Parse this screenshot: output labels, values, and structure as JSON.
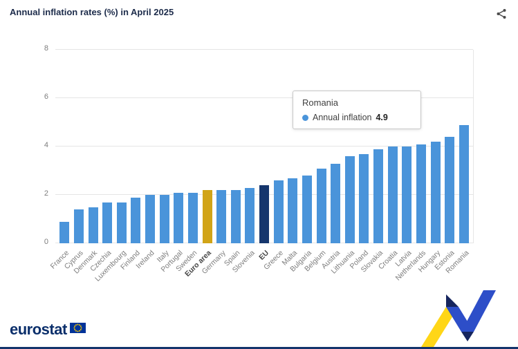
{
  "header": {
    "title": "Annual inflation rates (%) in April 2025"
  },
  "tooltip": {
    "title": "Romania",
    "series_label": "Annual inflation",
    "value": "4.9",
    "dot_color": "#4a94da"
  },
  "footer": {
    "logo_text": "eurostat"
  },
  "icons": {
    "share": "share-icon",
    "eu_flag": "eu-flag-icon",
    "ribbon": "eurostat-ribbon-decoration"
  },
  "colors": {
    "bar_default": "#4a94da",
    "bar_euro_area": "#d1a417",
    "bar_eu": "#16366d",
    "gridline": "#e5e5e5",
    "bottom_border": "#13336b"
  },
  "chart_data": {
    "type": "bar",
    "title": "Annual inflation rates (%) in April 2025",
    "xlabel": "",
    "ylabel": "",
    "ylim": [
      0,
      8
    ],
    "yticks": [
      0,
      2,
      4,
      6,
      8
    ],
    "grid": true,
    "legend_position": "tooltip-only",
    "categories": [
      "France",
      "Cyprus",
      "Denmark",
      "Czechia",
      "Luxembourg",
      "Finland",
      "Ireland",
      "Italy",
      "Portugal",
      "Sweden",
      "Euro area",
      "Germany",
      "Spain",
      "Slovenia",
      "EU",
      "Greece",
      "Malta",
      "Bulgaria",
      "Belgium",
      "Austria",
      "Lithuania",
      "Poland",
      "Slovakia",
      "Croatia",
      "Latvia",
      "Netherlands",
      "Hungary",
      "Estonia",
      "Romania"
    ],
    "values": [
      0.9,
      1.4,
      1.5,
      1.7,
      1.7,
      1.9,
      2.0,
      2.0,
      2.1,
      2.1,
      2.2,
      2.2,
      2.2,
      2.3,
      2.4,
      2.6,
      2.7,
      2.8,
      3.1,
      3.3,
      3.6,
      3.7,
      3.9,
      4.0,
      4.0,
      4.1,
      4.2,
      4.4,
      4.9
    ],
    "default_color": "#4a94da",
    "highlight_colors": {
      "Euro area": "#d1a417",
      "EU": "#16366d"
    },
    "bold_categories": [
      "Euro area",
      "EU"
    ]
  }
}
